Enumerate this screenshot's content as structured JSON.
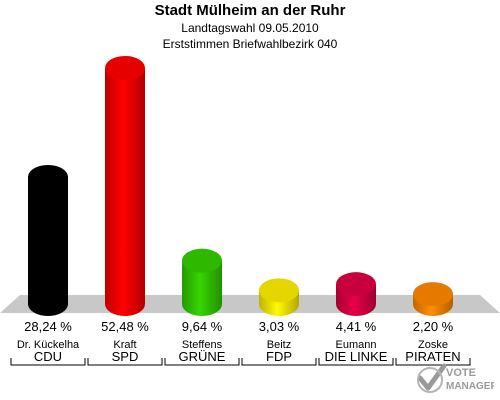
{
  "header": {
    "title": "Stadt Mülheim an der Ruhr",
    "subtitle1": "Landtagswahl 09.05.2010",
    "subtitle2": "Erststimmen Briefwahlbezirk 040"
  },
  "chart_data": {
    "type": "bar",
    "title": "Stadt Mülheim an der Ruhr",
    "subtitle": [
      "Landtagswahl 09.05.2010",
      "Erststimmen Briefwahlbezirk 040"
    ],
    "categories": [
      "CDU",
      "SPD",
      "GRÜNE",
      "FDP",
      "DIE LINKE",
      "PIRATEN"
    ],
    "candidates": [
      "Dr. Kückelha",
      "Kraft",
      "Steffens",
      "Beitz",
      "Eumann",
      "Zoske"
    ],
    "values": [
      28.24,
      52.48,
      9.64,
      3.03,
      4.41,
      2.2
    ],
    "value_labels": [
      "28,24 %",
      "52,48 %",
      "9,64 %",
      "3,03 %",
      "4,41 %",
      "2,20 %"
    ],
    "colors": [
      "#000000",
      "#ff0000",
      "#33cc00",
      "#ffee00",
      "#dd0044",
      "#ff8800"
    ],
    "ylim": [
      0,
      52.48
    ],
    "grid": false,
    "legend": "none"
  },
  "logo": {
    "text": [
      "VOTE",
      "MANAGER"
    ]
  }
}
